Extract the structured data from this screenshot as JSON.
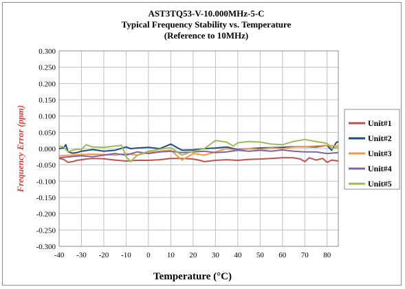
{
  "chart_data": {
    "type": "line",
    "title": "AST3TQ53-V-10.000MHz-5-C",
    "subtitle": "Typical Frequency Stability vs. Temperature",
    "subtitle2": "(Reference to 10MHz)",
    "xlabel": "Temperature (°C)",
    "ylabel": "Frequency Error (ppm)",
    "xlim": [
      -40,
      85
    ],
    "ylim": [
      -0.3,
      0.3
    ],
    "x_ticks": [
      "-40",
      "-30",
      "-20",
      "-10",
      "0",
      "10",
      "20",
      "30",
      "40",
      "50",
      "60",
      "70",
      "80"
    ],
    "y_ticks": [
      "0.300",
      "0.250",
      "0.200",
      "0.150",
      "0.100",
      "0.050",
      "0.000",
      "-0.050",
      "-0.100",
      "-0.150",
      "-0.200",
      "-0.250",
      "-0.300"
    ],
    "grid": true,
    "legend_position": "right",
    "colors": {
      "Unit#1": "#c0504d",
      "Unit#2": "#1f4e79",
      "Unit#3": "#f79646",
      "Unit#4": "#8064a2",
      "Unit#5": "#9bbb59",
      "ylabel": "#e0403a",
      "grid": "#c0c0c0"
    },
    "series": [
      {
        "name": "Unit#1",
        "x": [
          -40,
          -38,
          -36,
          -34,
          -32,
          -30,
          -28,
          -25,
          -20,
          -15,
          -10,
          -5,
          0,
          5,
          10,
          15,
          20,
          23,
          25,
          30,
          35,
          40,
          45,
          50,
          55,
          60,
          65,
          68,
          70,
          72,
          75,
          78,
          80,
          82,
          85
        ],
        "y": [
          -0.03,
          -0.033,
          -0.042,
          -0.04,
          -0.036,
          -0.034,
          -0.032,
          -0.03,
          -0.031,
          -0.035,
          -0.038,
          -0.036,
          -0.036,
          -0.034,
          -0.03,
          -0.03,
          -0.032,
          -0.036,
          -0.04,
          -0.036,
          -0.034,
          -0.036,
          -0.033,
          -0.032,
          -0.03,
          -0.028,
          -0.028,
          -0.032,
          -0.04,
          -0.028,
          -0.035,
          -0.03,
          -0.042,
          -0.035,
          -0.038
        ]
      },
      {
        "name": "Unit#2",
        "x": [
          -40,
          -38,
          -37,
          -36,
          -34,
          -32,
          -30,
          -25,
          -20,
          -15,
          -10,
          -8,
          -5,
          0,
          5,
          8,
          10,
          15,
          20,
          25,
          30,
          35,
          40,
          45,
          50,
          55,
          60,
          65,
          70,
          75,
          80,
          82,
          84,
          85
        ],
        "y": [
          0.0,
          0.002,
          0.012,
          -0.01,
          -0.014,
          -0.012,
          -0.008,
          -0.003,
          -0.008,
          -0.005,
          0.005,
          0.0,
          0.002,
          0.004,
          0.0,
          0.008,
          0.014,
          -0.005,
          -0.004,
          0.0,
          0.002,
          0.005,
          -0.003,
          0.0,
          0.002,
          0.003,
          0.004,
          0.006,
          0.006,
          0.005,
          0.01,
          -0.005,
          0.018,
          0.022
        ]
      },
      {
        "name": "Unit#3",
        "x": [
          -40,
          -35,
          -30,
          -25,
          -20,
          -15,
          -10,
          -5,
          0,
          5,
          10,
          15,
          20,
          25,
          30,
          35,
          40,
          45,
          50,
          55,
          60,
          65,
          70,
          75,
          80,
          85
        ],
        "y": [
          -0.022,
          -0.02,
          -0.018,
          -0.017,
          -0.018,
          -0.02,
          -0.015,
          -0.02,
          -0.012,
          -0.008,
          -0.005,
          -0.035,
          -0.015,
          -0.02,
          -0.01,
          0.0,
          -0.005,
          0.0,
          -0.002,
          0.002,
          0.0,
          0.005,
          0.006,
          0.008,
          0.01,
          0.008
        ]
      },
      {
        "name": "Unit#4",
        "x": [
          -40,
          -35,
          -30,
          -25,
          -20,
          -15,
          -10,
          -5,
          0,
          5,
          10,
          15,
          20,
          25,
          30,
          35,
          40,
          45,
          50,
          55,
          60,
          65,
          70,
          75,
          80,
          85
        ],
        "y": [
          -0.028,
          -0.025,
          -0.022,
          -0.025,
          -0.02,
          -0.015,
          -0.02,
          -0.01,
          -0.015,
          -0.01,
          -0.008,
          -0.012,
          -0.01,
          -0.008,
          -0.012,
          -0.01,
          -0.005,
          -0.008,
          -0.005,
          -0.008,
          -0.004,
          -0.008,
          -0.01,
          -0.01,
          -0.015,
          -0.012
        ]
      },
      {
        "name": "Unit#5",
        "x": [
          -40,
          -38,
          -36,
          -34,
          -32,
          -30,
          -28,
          -25,
          -20,
          -15,
          -12,
          -10,
          -8,
          -5,
          0,
          5,
          10,
          15,
          20,
          25,
          28,
          30,
          35,
          38,
          40,
          45,
          50,
          55,
          60,
          65,
          70,
          75,
          80,
          82,
          85
        ],
        "y": [
          0.008,
          0.005,
          -0.01,
          -0.005,
          -0.002,
          -0.003,
          0.012,
          0.005,
          0.004,
          0.008,
          0.01,
          -0.025,
          -0.04,
          -0.02,
          -0.008,
          -0.002,
          0.003,
          -0.02,
          -0.008,
          0.0,
          0.015,
          0.025,
          0.02,
          0.008,
          0.018,
          0.022,
          0.02,
          0.014,
          0.012,
          0.022,
          0.028,
          0.022,
          0.016,
          0.0,
          0.004
        ]
      }
    ]
  }
}
